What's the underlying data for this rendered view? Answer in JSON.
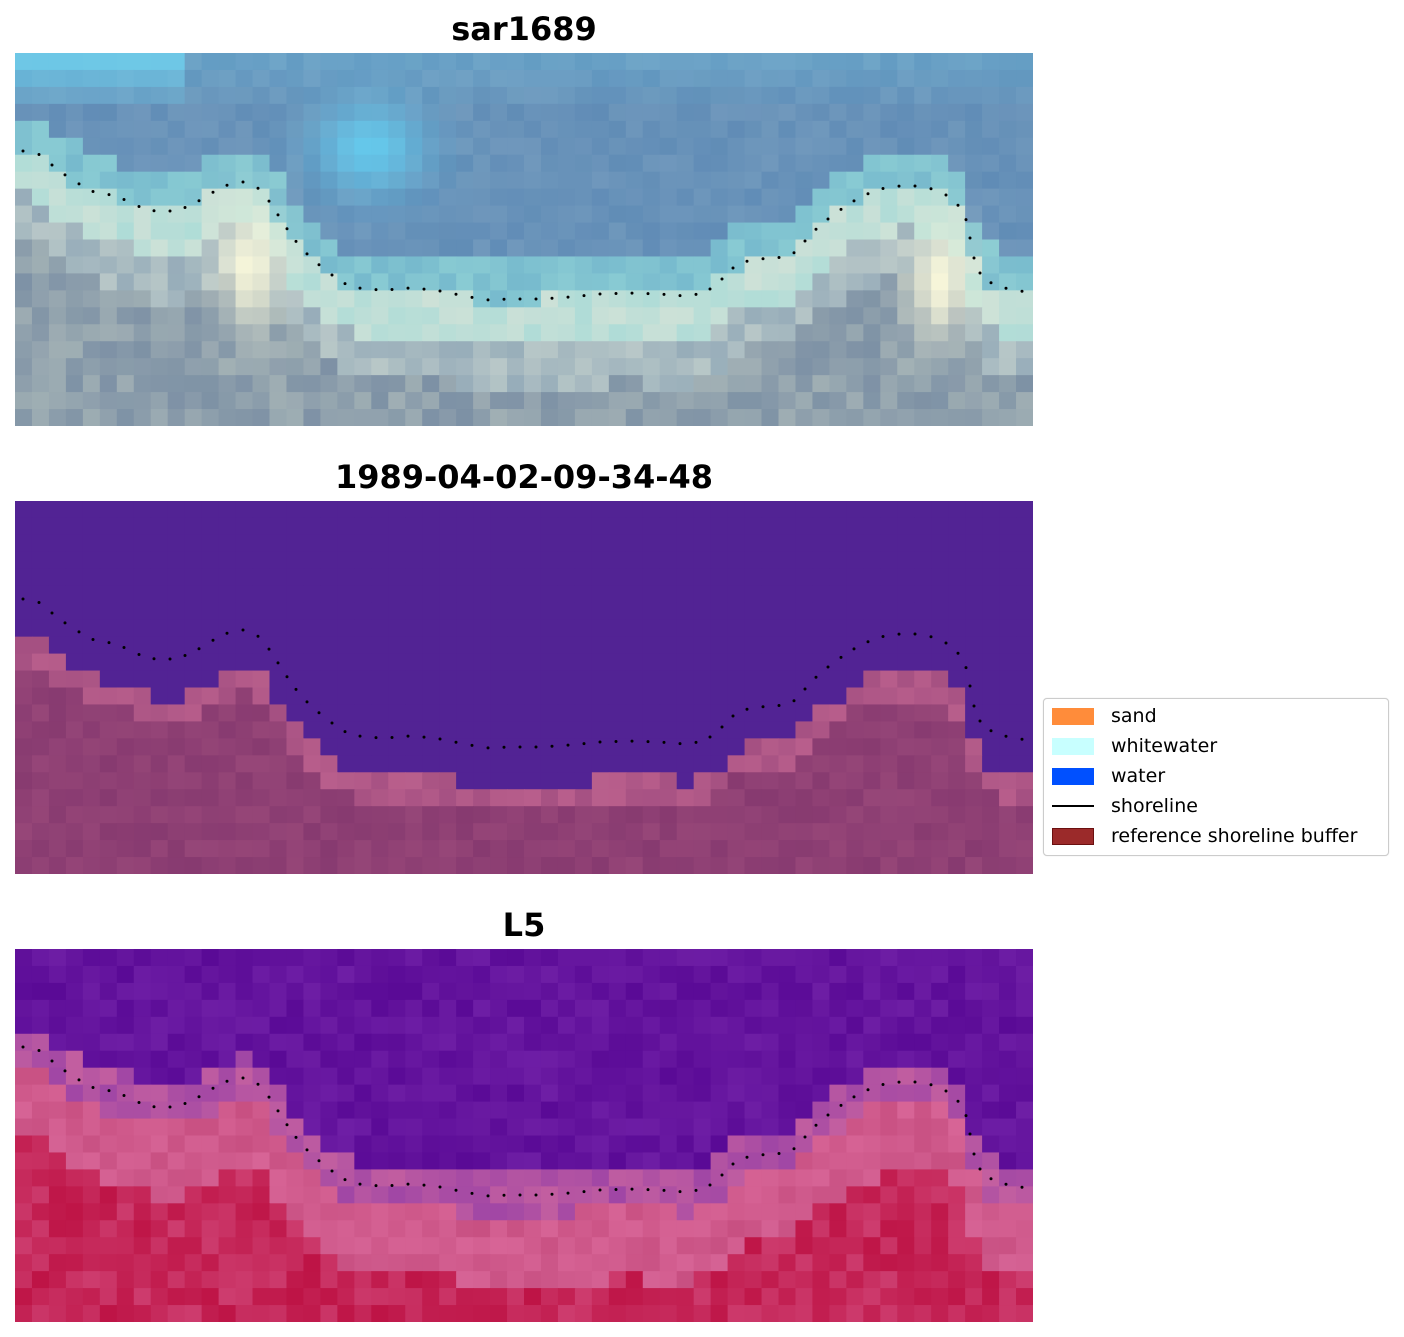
{
  "panels": [
    {
      "title": "sar1689",
      "palette": "rgb"
    },
    {
      "title": "1989-04-02-09-34-48",
      "palette": "classified"
    },
    {
      "title": "L5",
      "palette": "index"
    }
  ],
  "legend": {
    "items": [
      {
        "label": "sand",
        "color": "#ff8c3a",
        "kind": "patch"
      },
      {
        "label": "whitewater",
        "color": "#c8ffff",
        "kind": "patch"
      },
      {
        "label": "water",
        "color": "#0050ff",
        "kind": "patch"
      },
      {
        "label": "shoreline",
        "color": "#000000",
        "kind": "line"
      },
      {
        "label": "reference shoreline buffer",
        "color": "#9b2a2a",
        "kind": "patch"
      }
    ]
  }
}
